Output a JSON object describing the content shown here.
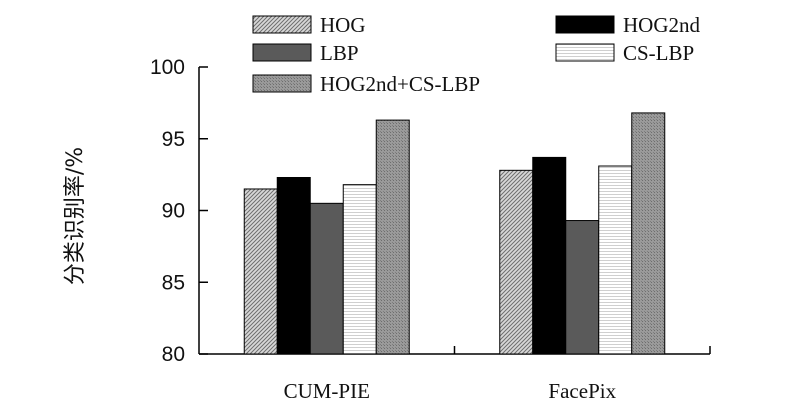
{
  "chart_data": {
    "type": "bar",
    "title": "",
    "xlabel": "",
    "ylabel": "分类识别率/%",
    "ylim": [
      80,
      100
    ],
    "yticks": [
      80,
      85,
      90,
      95,
      100
    ],
    "grid": false,
    "legend_position": "top",
    "categories": [
      "CUM-PIE",
      "FacePix"
    ],
    "series": [
      {
        "name": "HOG",
        "values": [
          91.5,
          92.8
        ],
        "pattern": "diag",
        "color": "#bdbdbd"
      },
      {
        "name": "HOG2nd",
        "values": [
          92.3,
          93.7
        ],
        "pattern": "solid",
        "color": "#000000"
      },
      {
        "name": "LBP",
        "values": [
          90.5,
          89.3
        ],
        "pattern": "solid",
        "color": "#5a5a5a"
      },
      {
        "name": "CS-LBP",
        "values": [
          91.8,
          93.1
        ],
        "pattern": "hlines",
        "color": "#f4f4f4"
      },
      {
        "name": "HOG2nd+CS-LBP",
        "values": [
          96.3,
          96.8
        ],
        "pattern": "dots",
        "color": "#8e8e8e"
      }
    ]
  }
}
